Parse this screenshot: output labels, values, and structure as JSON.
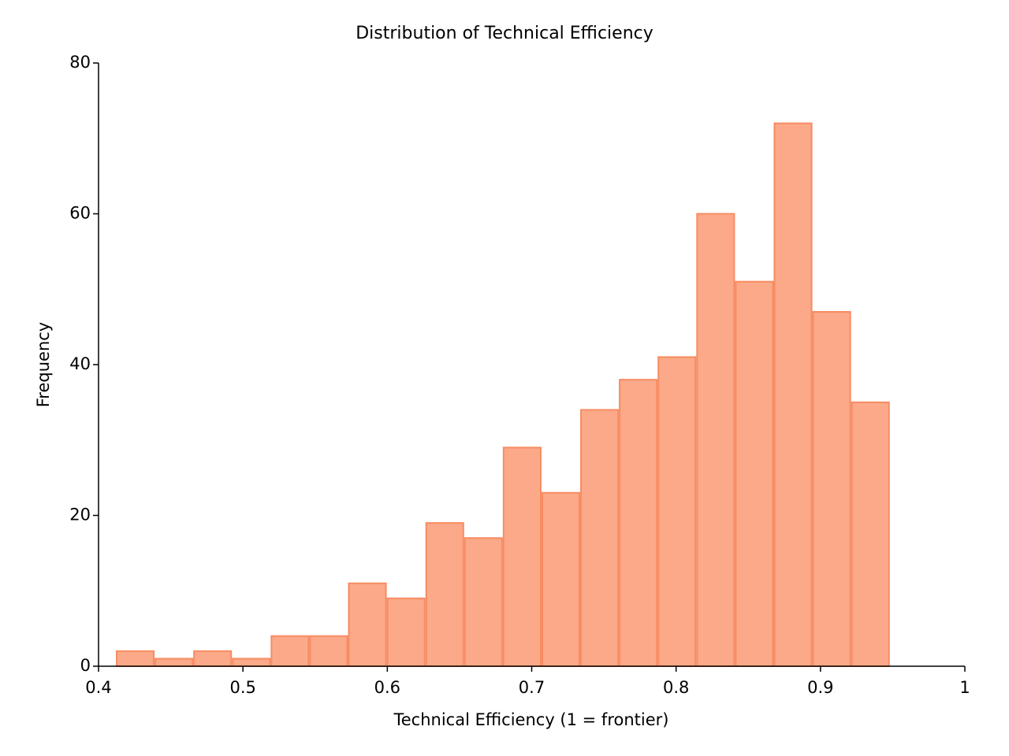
{
  "chart_data": {
    "type": "histogram",
    "title": "Distribution of Technical Efficiency",
    "x_label": "Technical Efficiency (1 = frontier)",
    "y_label": "Frequency",
    "bins": [
      0.412,
      0.4388,
      0.4656,
      0.4924,
      0.5192,
      0.546,
      0.5728,
      0.5996,
      0.6264,
      0.6532,
      0.68,
      0.7068,
      0.7336,
      0.7604,
      0.7872,
      0.814,
      0.8408,
      0.8676,
      0.8944,
      0.9212,
      0.948
    ],
    "values": [
      2,
      1,
      2,
      1,
      4,
      4,
      11,
      9,
      19,
      17,
      29,
      23,
      34,
      38,
      41,
      60,
      51,
      72,
      47,
      35
    ],
    "color": "#fba989",
    "edge_color": "#f78c62",
    "xlim": [
      0.4,
      1
    ],
    "xticks": [
      0.4,
      0.5,
      0.6,
      0.7,
      0.8,
      0.9,
      1
    ],
    "ylim": [
      0,
      80
    ],
    "yticks": [
      0,
      20,
      40,
      60,
      80
    ],
    "grid": false
  }
}
